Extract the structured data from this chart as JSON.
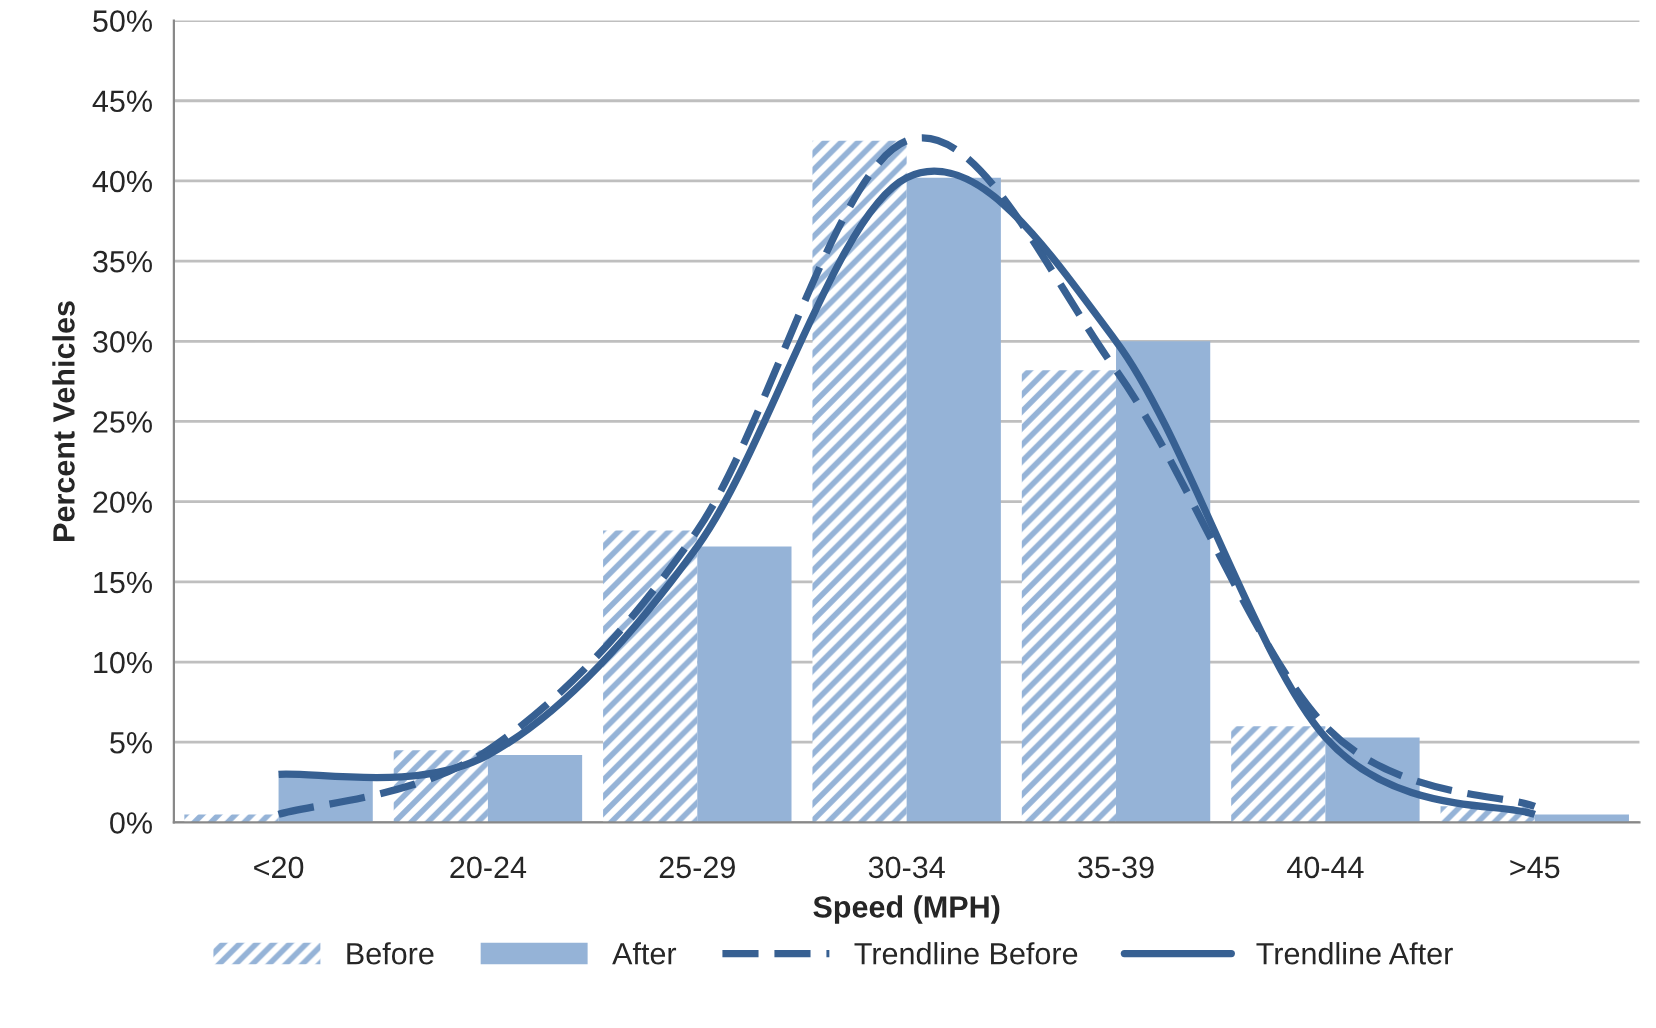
{
  "chart_data": {
    "type": "bar",
    "xlabel": "Speed (MPH)",
    "ylabel": "Percent Vehicles",
    "categories": [
      "<20",
      "20-24",
      "25-29",
      "30-34",
      "35-39",
      "40-44",
      ">45"
    ],
    "series": [
      {
        "name": "Before",
        "color": "#95b3d7",
        "values": [
          0.5,
          4.5,
          18.2,
          42.5,
          28.2,
          6.0,
          1.0
        ]
      },
      {
        "name": "After",
        "color": "#95b3d7",
        "values": [
          3.0,
          4.2,
          17.2,
          40.2,
          30.0,
          5.3,
          0.5
        ]
      },
      {
        "name": "Trendline Before",
        "type": "line",
        "color": "#376092",
        "line_style": "dashed",
        "values": [
          0.5,
          4.5,
          18.2,
          42.5,
          28.2,
          6.0,
          1.0
        ]
      },
      {
        "name": "Trendline After",
        "type": "line",
        "color": "#376092",
        "line_style": "solid",
        "values": [
          3.0,
          4.2,
          17.2,
          40.2,
          30.0,
          5.3,
          0.5
        ]
      }
    ],
    "ylim": [
      0,
      50
    ],
    "yticks": [
      {
        "value": 0,
        "label": "0%"
      },
      {
        "value": 5,
        "label": "5%"
      },
      {
        "value": 10,
        "label": "10%"
      },
      {
        "value": 15,
        "label": "15%"
      },
      {
        "value": 20,
        "label": "20%"
      },
      {
        "value": 25,
        "label": "25%"
      },
      {
        "value": 30,
        "label": "30%"
      },
      {
        "value": 35,
        "label": "35%"
      },
      {
        "value": 40,
        "label": "40%"
      },
      {
        "value": 45,
        "label": "45%"
      },
      {
        "value": 50,
        "label": "50%"
      }
    ],
    "grid": "y",
    "legend": "bottom"
  }
}
